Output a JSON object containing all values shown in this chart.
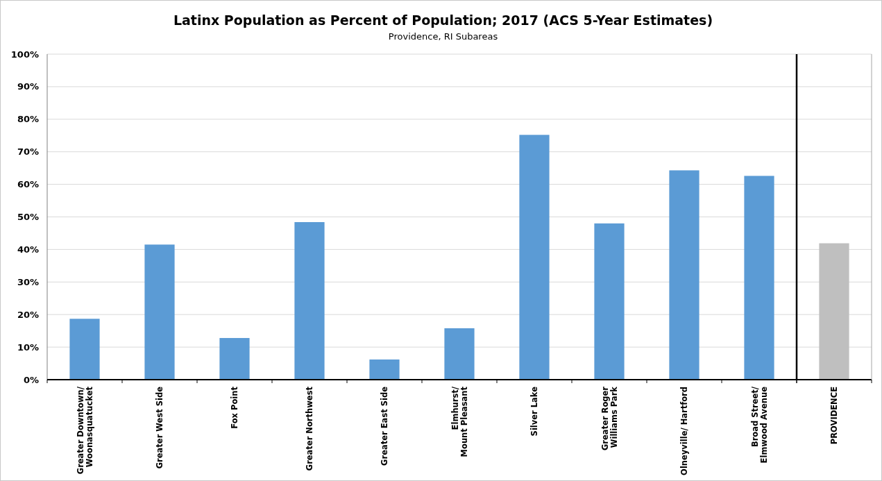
{
  "chart_data": [
    {
      "type": "bar",
      "title": "Latinx Population as Percent of Population; 2017 (ACS 5-Year Estimates)",
      "subtitle": "Providence, RI Subareas",
      "categories": [
        "Greater Downtown/\nWoonasquatucket",
        "Greater West Side",
        "Fox Point",
        "Greater Northwest",
        "Greater East Side",
        "Elmhurst/\nMount Pleasant",
        "Silver Lake",
        "Greater Roger\nWilliams Park",
        "Olneyville/ Hartford",
        "Broad Street/\nElmwood Avenue"
      ],
      "values": [
        18.7,
        41.5,
        12.8,
        48.4,
        6.2,
        15.8,
        75.2,
        48.0,
        64.3,
        62.6
      ],
      "colors": [
        "#5b9bd5",
        "#5b9bd5",
        "#5b9bd5",
        "#5b9bd5",
        "#5b9bd5",
        "#5b9bd5",
        "#5b9bd5",
        "#5b9bd5",
        "#5b9bd5",
        "#5b9bd5"
      ],
      "ylim": [
        0,
        100
      ],
      "yticks": [
        {
          "value": 0,
          "label": "0%"
        },
        {
          "value": 10,
          "label": "10%"
        },
        {
          "value": 20,
          "label": "20%"
        },
        {
          "value": 30,
          "label": "30%"
        },
        {
          "value": 40,
          "label": "40%"
        },
        {
          "value": 50,
          "label": "50%"
        },
        {
          "value": 60,
          "label": "60%"
        },
        {
          "value": 70,
          "label": "70%"
        },
        {
          "value": 80,
          "label": "80%"
        },
        {
          "value": 90,
          "label": "90%"
        },
        {
          "value": 100,
          "label": "100%"
        }
      ],
      "grid": "y"
    },
    {
      "type": "bar",
      "categories": [
        "PROVIDENCE"
      ],
      "values": [
        41.9
      ],
      "colors": [
        "#bfbfbf"
      ],
      "ylim": [
        0,
        100
      ],
      "yticks": [
        {
          "value": 0,
          "label": null
        },
        {
          "value": 10,
          "label": null
        },
        {
          "value": 20,
          "label": null
        },
        {
          "value": 30,
          "label": null
        },
        {
          "value": 40,
          "label": null
        },
        {
          "value": 50,
          "label": null
        },
        {
          "value": 60,
          "label": null
        },
        {
          "value": 70,
          "label": null
        },
        {
          "value": 80,
          "label": null
        },
        {
          "value": 90,
          "label": null
        },
        {
          "value": 100,
          "label": null
        }
      ],
      "grid": "y",
      "tick_labels": "x"
    }
  ]
}
